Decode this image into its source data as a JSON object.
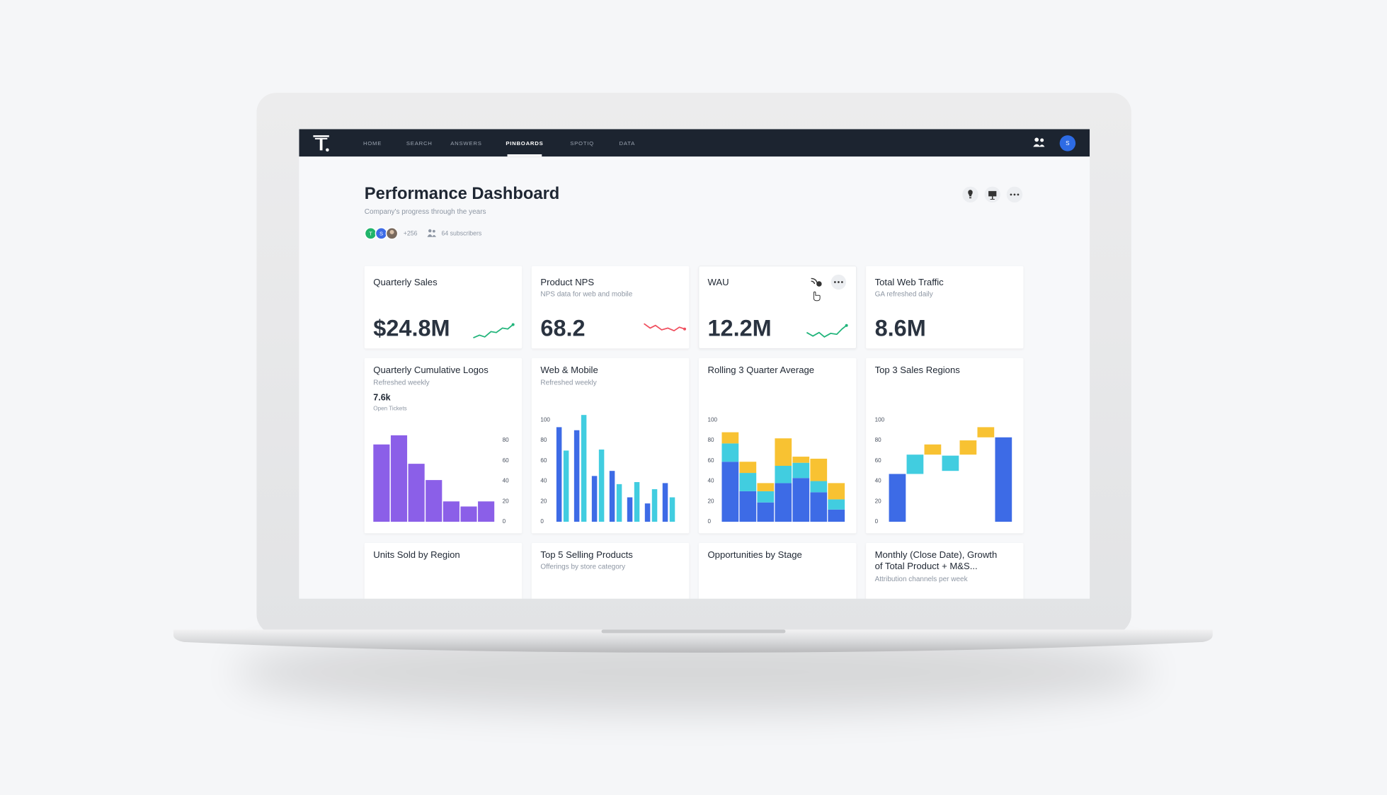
{
  "nav": {
    "items": [
      "HOME",
      "SEARCH",
      "ANSWERS",
      "PINBOARDS",
      "SPOTIQ",
      "DATA"
    ],
    "active": 3,
    "avatar": "S"
  },
  "header": {
    "title": "Performance Dashboard",
    "subtitle": "Company's progress through the years",
    "avatars": [
      "T",
      "S"
    ],
    "more": "+256",
    "subscribers": "64 subscribers"
  },
  "kpis": [
    {
      "title": "Quarterly Sales",
      "value": "$24.8M"
    },
    {
      "title": "Product NPS",
      "subtitle": "NPS data for web and mobile",
      "value": "68.2"
    },
    {
      "title": "WAU",
      "value": "12.2M"
    },
    {
      "title": "Total Web Traffic",
      "subtitle": "GA refreshed daily",
      "value": "8.6M"
    }
  ],
  "charts": [
    {
      "type": "bar",
      "title": "Quarterly Cumulative Logos",
      "subtitle": "Refreshed weekly",
      "metric": "7.6k",
      "metric_label": "Open Tickets",
      "values": [
        76,
        85,
        57,
        41,
        20,
        15,
        20
      ],
      "color": "#8b5fe8",
      "ylim": [
        0,
        90
      ],
      "yticks": [
        0,
        20,
        40,
        60,
        80
      ],
      "axis_side": "right"
    },
    {
      "type": "grouped_bar",
      "title": "Web & Mobile",
      "subtitle": "Refreshed weekly",
      "series": [
        {
          "color": "#3d6be6",
          "values": [
            93,
            90,
            45,
            50,
            24,
            18,
            38
          ]
        },
        {
          "color": "#41cde0",
          "values": [
            70,
            105,
            71,
            37,
            39,
            32,
            24
          ]
        }
      ],
      "ylim": [
        0,
        110
      ],
      "yticks": [
        0,
        20,
        40,
        60,
        80,
        100
      ],
      "axis_side": "left"
    },
    {
      "type": "stacked_bar",
      "title": "Rolling 3 Quarter Average",
      "series": [
        {
          "color": "#3d6be6",
          "values": [
            59,
            30,
            19,
            38,
            43,
            29,
            12
          ]
        },
        {
          "color": "#41cde0",
          "values": [
            18,
            18,
            11,
            17,
            15,
            11,
            10
          ]
        },
        {
          "color": "#f8c232",
          "values": [
            11,
            11,
            8,
            27,
            6,
            22,
            16
          ]
        }
      ],
      "ylim": [
        0,
        110
      ],
      "yticks": [
        0,
        20,
        40,
        60,
        80,
        100
      ],
      "axis_side": "left"
    },
    {
      "type": "waterfall",
      "title": "Top 3 Sales Regions",
      "bars": [
        {
          "low": 0,
          "high": 47,
          "color": "#3d6be6"
        },
        {
          "low": 47,
          "high": 66,
          "color": "#41cde0"
        },
        {
          "low": 66,
          "high": 76,
          "color": "#f8c232"
        },
        {
          "low": 50,
          "high": 65,
          "color": "#41cde0"
        },
        {
          "low": 66,
          "high": 80,
          "color": "#f8c232"
        },
        {
          "low": 83,
          "high": 93,
          "color": "#f8c232"
        },
        {
          "low": 0,
          "high": 83,
          "color": "#3d6be6"
        }
      ],
      "ylim": [
        0,
        110
      ],
      "yticks": [
        0,
        20,
        40,
        60,
        80,
        100
      ],
      "axis_side": "left"
    }
  ],
  "bottom": [
    {
      "title": [
        "Units Sold by Region"
      ]
    },
    {
      "title": [
        "Top 5 Selling Products"
      ],
      "subtitle": "Offerings by store category"
    },
    {
      "title": [
        "Opportunities by Stage"
      ]
    },
    {
      "title": [
        "Monthly (Close Date), Growth",
        "of Total Product + M&S..."
      ],
      "subtitle": "Attribution channels per week"
    }
  ]
}
